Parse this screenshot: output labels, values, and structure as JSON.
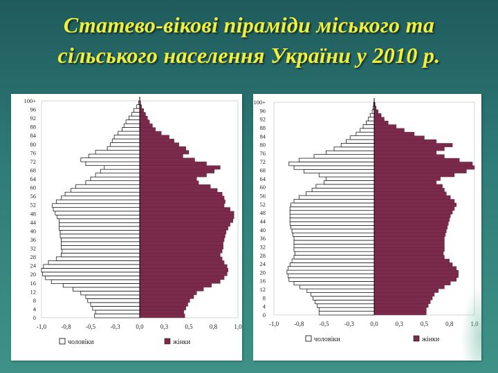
{
  "title": {
    "line1": "Статево-вікові піраміди міського та",
    "line2": "сільського населення України у 2010 р."
  },
  "colors": {
    "male": "#ffffff",
    "female": "#7b2a4c",
    "outline": "#000000"
  },
  "chart_data": [
    {
      "id": "urban",
      "type": "bar",
      "orientation": "horizontal-pyramid",
      "title": "",
      "y_tick_labels": [
        "0",
        "4",
        "8",
        "12",
        "16",
        "20",
        "24",
        "28",
        "32",
        "36",
        "40",
        "44",
        "48",
        "52",
        "56",
        "60",
        "64",
        "68",
        "72",
        "76",
        "80",
        "84",
        "88",
        "92",
        "96",
        "100+"
      ],
      "x_tick_labels": [
        "-1,0",
        "-0,8",
        "-0,5",
        "-0,3",
        "0,0",
        "0,3",
        "0,5",
        "0,8",
        "1,0"
      ],
      "xlim": [
        -1.0,
        1.0
      ],
      "legend": [
        "чоловіки",
        "жінки"
      ],
      "legend_position": "bottom",
      "series": [
        {
          "name": "чоловіки",
          "values": [
            -0.46,
            -0.45,
            -0.48,
            -0.5,
            -0.53,
            -0.55,
            -0.6,
            -0.68,
            -0.78,
            -0.9,
            -0.96,
            -0.99,
            -1.0,
            -0.98,
            -0.93,
            -0.85,
            -0.8,
            -0.79,
            -0.8,
            -0.8,
            -0.8,
            -0.81,
            -0.81,
            -0.82,
            -0.82,
            -0.82,
            -0.84,
            -0.86,
            -0.88,
            -0.89,
            -0.85,
            -0.8,
            -0.76,
            -0.7,
            -0.65,
            -0.55,
            -0.5,
            -0.45,
            -0.4,
            -0.36,
            -0.55,
            -0.6,
            -0.52,
            -0.45,
            -0.33,
            -0.3,
            -0.28,
            -0.26,
            -0.22,
            -0.18,
            -0.16,
            -0.14,
            -0.11,
            -0.08,
            -0.06,
            -0.03,
            -0.01
          ]
        },
        {
          "name": "жінки",
          "values": [
            0.46,
            0.45,
            0.47,
            0.49,
            0.51,
            0.55,
            0.58,
            0.65,
            0.73,
            0.82,
            0.86,
            0.89,
            0.9,
            0.89,
            0.86,
            0.84,
            0.82,
            0.84,
            0.85,
            0.85,
            0.86,
            0.87,
            0.88,
            0.9,
            0.92,
            0.95,
            0.96,
            0.96,
            0.92,
            0.86,
            0.87,
            0.86,
            0.84,
            0.79,
            0.72,
            0.6,
            0.58,
            0.68,
            0.76,
            0.82,
            0.68,
            0.56,
            0.44,
            0.5,
            0.47,
            0.4,
            0.35,
            0.3,
            0.22,
            0.16,
            0.13,
            0.1,
            0.08,
            0.06,
            0.04,
            0.02,
            0.01
          ]
        }
      ]
    },
    {
      "id": "rural",
      "type": "bar",
      "orientation": "horizontal-pyramid",
      "title": "",
      "y_tick_labels": [
        "0",
        "4",
        "8",
        "12",
        "16",
        "20",
        "24",
        "28",
        "32",
        "36",
        "40",
        "44",
        "48",
        "52",
        "56",
        "60",
        "64",
        "68",
        "72",
        "76",
        "80",
        "84",
        "88",
        "92",
        "96",
        "100+"
      ],
      "x_tick_labels": [
        "-1,0",
        "-0,8",
        "-0,5",
        "-0,3",
        "0,0",
        "0,3",
        "0,5",
        "0,8",
        "1,0"
      ],
      "xlim": [
        -1.0,
        1.0
      ],
      "legend": [
        "чоловіки",
        "жінки"
      ],
      "legend_position": "bottom",
      "series": [
        {
          "name": "чоловіки",
          "values": [
            -0.55,
            -0.55,
            -0.57,
            -0.59,
            -0.61,
            -0.63,
            -0.67,
            -0.74,
            -0.8,
            -0.85,
            -0.86,
            -0.87,
            -0.86,
            -0.84,
            -0.82,
            -0.8,
            -0.79,
            -0.8,
            -0.8,
            -0.8,
            -0.8,
            -0.81,
            -0.82,
            -0.83,
            -0.84,
            -0.84,
            -0.84,
            -0.84,
            -0.84,
            -0.83,
            -0.8,
            -0.75,
            -0.68,
            -0.62,
            -0.58,
            -0.5,
            -0.48,
            -0.55,
            -0.7,
            -0.8,
            -0.85,
            -0.75,
            -0.6,
            -0.48,
            -0.4,
            -0.33,
            -0.28,
            -0.24,
            -0.18,
            -0.14,
            -0.11,
            -0.08,
            -0.06,
            -0.04,
            -0.02,
            -0.01,
            -0.005
          ]
        },
        {
          "name": "жінки",
          "values": [
            0.52,
            0.52,
            0.54,
            0.56,
            0.58,
            0.6,
            0.64,
            0.7,
            0.76,
            0.82,
            0.84,
            0.84,
            0.82,
            0.78,
            0.75,
            0.7,
            0.69,
            0.7,
            0.7,
            0.7,
            0.7,
            0.71,
            0.72,
            0.73,
            0.74,
            0.75,
            0.76,
            0.78,
            0.8,
            0.82,
            0.8,
            0.76,
            0.72,
            0.7,
            0.68,
            0.62,
            0.66,
            0.8,
            0.92,
            1.0,
            0.98,
            0.85,
            0.7,
            0.62,
            0.7,
            0.78,
            0.62,
            0.5,
            0.4,
            0.3,
            0.22,
            0.14,
            0.1,
            0.07,
            0.04,
            0.02,
            0.01
          ]
        }
      ]
    }
  ]
}
